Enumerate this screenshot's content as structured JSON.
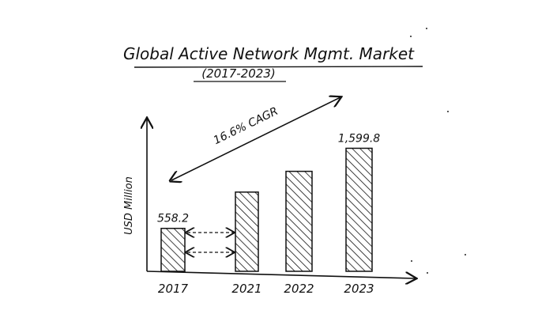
{
  "chart_data": {
    "type": "bar",
    "title": "Global Active Network Mgmt. Market",
    "subtitle": "(2017-2023)",
    "ylabel": "USD Million",
    "xlabel": "",
    "annotation": "16.6% CAGR",
    "categories": [
      "2017",
      "2021",
      "2022",
      "2023"
    ],
    "values": [
      558.2,
      1030,
      1300,
      1599.8
    ],
    "data_labels": [
      "558.2",
      "",
      "",
      "1,599.8"
    ],
    "ylim": [
      0,
      1800
    ],
    "grid": false,
    "legend": "none",
    "bar_fill": "hatched",
    "colors": {
      "ink": "#111111",
      "background": "#ffffff"
    }
  }
}
